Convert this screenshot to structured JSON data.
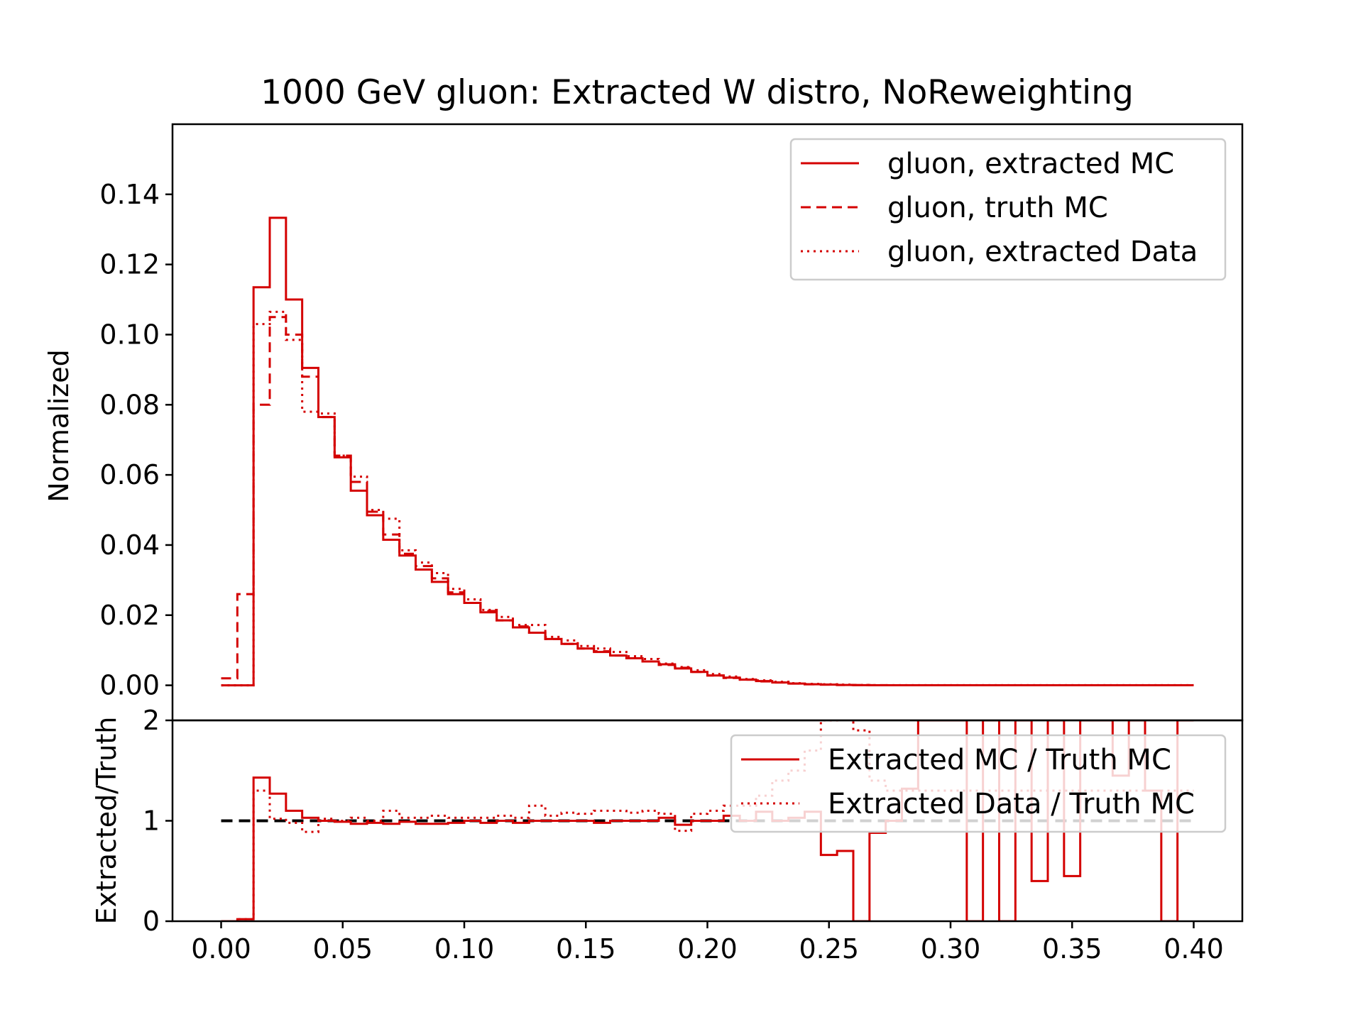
{
  "title": "1000 GeV gluon: Extracted W distro, NoReweighting",
  "colors": {
    "series": "#d40000",
    "reference": "#000000"
  },
  "chart_data": [
    {
      "type": "line",
      "panel": "main",
      "step": true,
      "ylabel": "Normalized",
      "xlim": [
        -0.02,
        0.42
      ],
      "ylim": [
        -0.01,
        0.16
      ],
      "xticks": [
        "0.00",
        "0.05",
        "0.10",
        "0.15",
        "0.20",
        "0.25",
        "0.30",
        "0.35",
        "0.40"
      ],
      "yticks": [
        "0.00",
        "0.02",
        "0.04",
        "0.06",
        "0.08",
        "0.10",
        "0.12",
        "0.14"
      ],
      "legend": "top-right",
      "bin_edges": [
        0.0,
        0.00667,
        0.01333,
        0.02,
        0.02667,
        0.03333,
        0.04,
        0.04667,
        0.05333,
        0.06,
        0.06667,
        0.07333,
        0.08,
        0.08667,
        0.09333,
        0.1,
        0.10667,
        0.11333,
        0.12,
        0.12667,
        0.13333,
        0.14,
        0.14667,
        0.15333,
        0.16,
        0.16667,
        0.17333,
        0.18,
        0.18667,
        0.19333,
        0.2,
        0.20667,
        0.21333,
        0.22,
        0.22667,
        0.23333,
        0.24,
        0.24667,
        0.25333,
        0.26,
        0.26667,
        0.27333,
        0.28,
        0.28667,
        0.29333,
        0.3,
        0.30667,
        0.31333,
        0.32,
        0.32667,
        0.33333,
        0.34,
        0.34667,
        0.35333,
        0.36,
        0.36667,
        0.37333,
        0.38,
        0.38667,
        0.39333,
        0.4
      ],
      "series": [
        {
          "name": "gluon, extracted MC",
          "style": "solid",
          "values": [
            0.0,
            0.0,
            0.1135,
            0.1333,
            0.11,
            0.0905,
            0.0765,
            0.065,
            0.0555,
            0.0485,
            0.0415,
            0.037,
            0.033,
            0.0295,
            0.026,
            0.0235,
            0.0208,
            0.0185,
            0.0165,
            0.015,
            0.0132,
            0.0118,
            0.0105,
            0.0095,
            0.0085,
            0.0077,
            0.0068,
            0.006,
            0.0048,
            0.0038,
            0.0028,
            0.0022,
            0.0016,
            0.0012,
            0.0008,
            0.0005,
            0.0003,
            0.0002,
            0.0001,
            5e-05,
            3e-05,
            3e-05,
            3e-05,
            3e-05,
            3e-05,
            3e-05,
            3e-05,
            3e-05,
            3e-05,
            3e-05,
            3e-05,
            3e-05,
            3e-05,
            3e-05,
            3e-05,
            3e-05,
            3e-05,
            3e-05,
            3e-05,
            3e-05
          ]
        },
        {
          "name": "gluon, truth MC",
          "style": "dashed",
          "values": [
            0.002,
            0.026,
            0.08,
            0.105,
            0.1,
            0.088,
            0.0765,
            0.0655,
            0.058,
            0.0495,
            0.043,
            0.0375,
            0.034,
            0.0305,
            0.0265,
            0.0235,
            0.0212,
            0.0185,
            0.0168,
            0.015,
            0.0132,
            0.0118,
            0.0105,
            0.0097,
            0.0085,
            0.0077,
            0.0068,
            0.0058,
            0.005,
            0.0038,
            0.0028,
            0.0021,
            0.0016,
            0.0011,
            0.0008,
            0.0005,
            0.0003,
            0.0002,
            0.0001,
            7e-05,
            4e-05,
            3e-05,
            3e-05,
            3e-05,
            3e-05,
            3e-05,
            3e-05,
            3e-05,
            3e-05,
            3e-05,
            3e-05,
            3e-05,
            3e-05,
            3e-05,
            3e-05,
            3e-05,
            3e-05,
            3e-05,
            3e-05,
            3e-05
          ]
        },
        {
          "name": "gluon, extracted Data",
          "style": "dotted",
          "values": [
            0.0,
            0.0,
            0.103,
            0.1065,
            0.0985,
            0.078,
            0.0775,
            0.0655,
            0.0595,
            0.05,
            0.0475,
            0.0385,
            0.035,
            0.032,
            0.0275,
            0.0245,
            0.0215,
            0.0195,
            0.0172,
            0.0172,
            0.0138,
            0.0128,
            0.0112,
            0.0105,
            0.0095,
            0.0083,
            0.0075,
            0.0062,
            0.0052,
            0.0043,
            0.0032,
            0.0025,
            0.0018,
            0.0014,
            0.001,
            0.0006,
            0.0004,
            0.0003,
            0.0002,
            0.0001,
            5e-05,
            4e-05,
            4e-05,
            4e-05,
            4e-05,
            4e-05,
            4e-05,
            4e-05,
            4e-05,
            4e-05,
            4e-05,
            4e-05,
            4e-05,
            4e-05,
            4e-05,
            4e-05,
            4e-05,
            4e-05,
            4e-05,
            4e-05
          ]
        }
      ]
    },
    {
      "type": "line",
      "panel": "ratio",
      "step": true,
      "ylabel": "Extracted/Truth",
      "xlim": [
        -0.02,
        0.42
      ],
      "ylim": [
        0,
        2
      ],
      "yticks": [
        "0",
        "1",
        "2"
      ],
      "reference_line": 1,
      "legend": "top-right",
      "series": [
        {
          "name": "Extracted MC / Truth MC",
          "style": "solid",
          "values": [
            0,
            0.02,
            1.43,
            1.27,
            1.1,
            1.03,
            1.0,
            0.99,
            0.97,
            0.98,
            0.97,
            0.99,
            0.97,
            0.97,
            0.98,
            1.0,
            0.98,
            1.0,
            0.98,
            1.0,
            1.0,
            1.0,
            1.0,
            0.98,
            1.0,
            1.0,
            1.0,
            1.03,
            0.96,
            1.0,
            1.0,
            1.05,
            1.0,
            1.09,
            1.0,
            1.03,
            1.09,
            0.66,
            0.7,
            0,
            0.88,
            1.0,
            1.32,
            2.0,
            2.0,
            2.0,
            0,
            2.0,
            0,
            2.0,
            0.4,
            2.0,
            0.45,
            2.0,
            2.0,
            1.45,
            2.0,
            1.3,
            0,
            2.0
          ]
        },
        {
          "name": "Extracted Data / Truth MC",
          "style": "dotted",
          "values": [
            0,
            0.02,
            1.3,
            1.02,
            0.98,
            0.89,
            1.02,
            1.0,
            1.03,
            1.0,
            1.1,
            1.03,
            1.03,
            1.05,
            1.03,
            1.03,
            1.03,
            1.05,
            1.03,
            1.15,
            1.05,
            1.08,
            1.07,
            1.1,
            1.1,
            1.08,
            1.1,
            1.07,
            0.9,
            1.07,
            1.1,
            1.15,
            1.15,
            1.25,
            1.4,
            1.5,
            1.7,
            2.0,
            2.1,
            1.9,
            1.4,
            1.3,
            1.3,
            1.3,
            1.3,
            1.3,
            1.3,
            1.3,
            1.3,
            1.3,
            1.3,
            1.3,
            1.3,
            1.3,
            1.3,
            1.3,
            1.3,
            1.3,
            1.3,
            1.3
          ]
        }
      ]
    }
  ]
}
